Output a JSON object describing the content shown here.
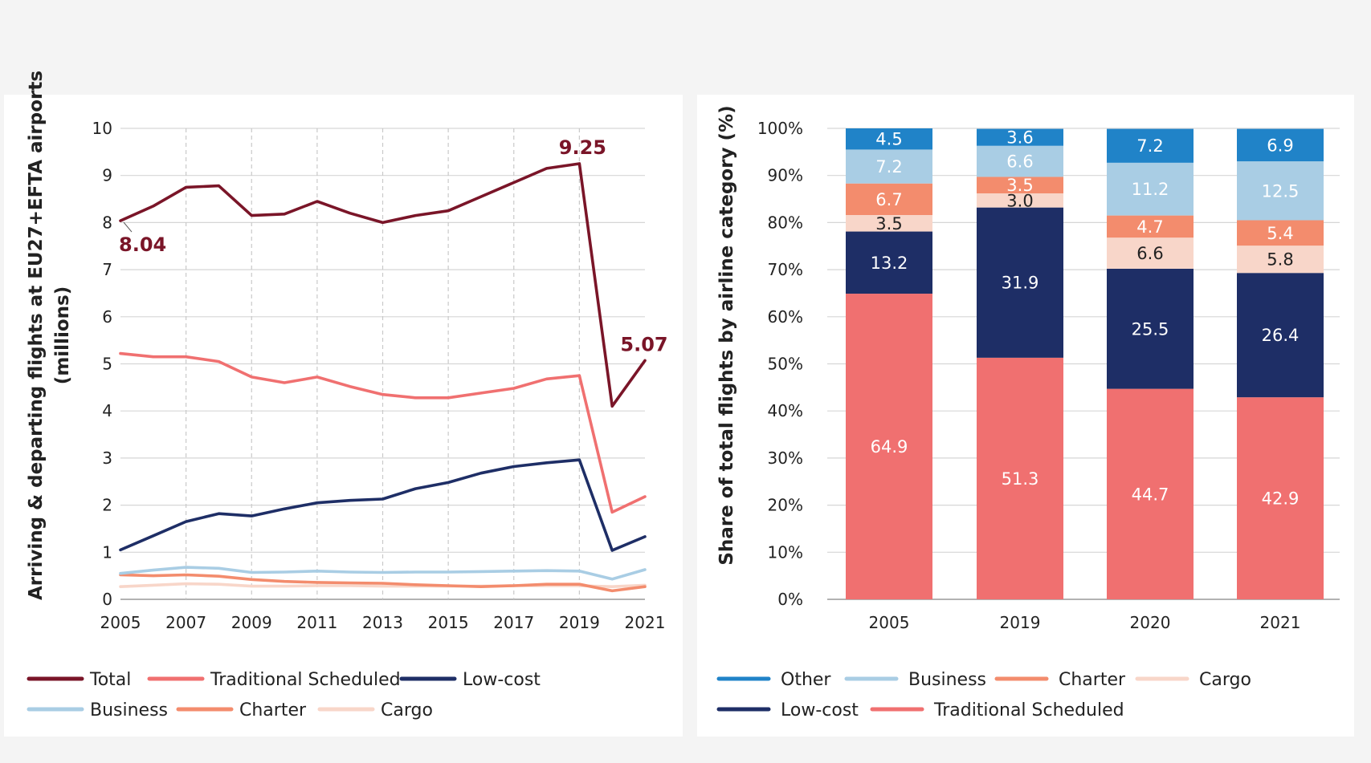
{
  "line_chart": {
    "ylabel_line1": "Arriving & departing flights at EU27+EFTA airports",
    "ylabel_line2": "(millions)",
    "annotations": [
      {
        "text": "8.04",
        "x": 2005,
        "y": 8.04
      },
      {
        "text": "9.25",
        "x": 2019,
        "y": 9.25
      },
      {
        "text": "5.07",
        "x": 2021,
        "y": 5.07
      }
    ],
    "legend": [
      "Total",
      "Traditional Scheduled",
      "Low-cost",
      "Business",
      "Charter",
      "Cargo"
    ]
  },
  "bar_chart": {
    "ylabel": "Share of total flights by airline category (%)",
    "legend": [
      "Other",
      "Business",
      "Charter",
      "Cargo",
      "Low-cost",
      "Traditional Scheduled"
    ]
  },
  "colors": {
    "total": "#7a1528",
    "traditional_scheduled": "#f07070",
    "low_cost": "#1e2e66",
    "business": "#a9cde4",
    "charter": "#f38c6d",
    "cargo": "#f8d6c9",
    "other": "#2083c8"
  },
  "chart_data": [
    {
      "type": "line",
      "x": [
        2005,
        2006,
        2007,
        2008,
        2009,
        2010,
        2011,
        2012,
        2013,
        2014,
        2015,
        2016,
        2017,
        2018,
        2019,
        2020,
        2021
      ],
      "xticks": [
        "2005",
        "2007",
        "2009",
        "2011",
        "2013",
        "2015",
        "2017",
        "2019",
        "2021"
      ],
      "yticks": [
        "0",
        "1",
        "2",
        "3",
        "4",
        "5",
        "6",
        "7",
        "8",
        "9",
        "10"
      ],
      "ylim": [
        0,
        10
      ],
      "xlim": [
        2005,
        2021
      ],
      "ylabel": "Arriving & departing flights at EU27+EFTA airports (millions)",
      "grid": {
        "horizontal": true,
        "vertical_dashed": true
      },
      "legend_position": "bottom",
      "series": [
        {
          "name": "Total",
          "color": "#7a1528",
          "values": [
            8.04,
            8.35,
            8.75,
            8.78,
            8.15,
            8.18,
            8.45,
            8.2,
            8.0,
            8.15,
            8.25,
            8.55,
            8.85,
            9.15,
            9.25,
            4.1,
            5.07
          ]
        },
        {
          "name": "Traditional Scheduled",
          "color": "#f07070",
          "values": [
            5.22,
            5.15,
            5.15,
            5.05,
            4.72,
            4.6,
            4.72,
            4.52,
            4.35,
            4.28,
            4.28,
            4.38,
            4.48,
            4.68,
            4.75,
            1.85,
            2.18
          ]
        },
        {
          "name": "Low-cost",
          "color": "#1e2e66",
          "values": [
            1.05,
            1.35,
            1.65,
            1.82,
            1.77,
            1.92,
            2.05,
            2.1,
            2.13,
            2.35,
            2.48,
            2.68,
            2.82,
            2.9,
            2.96,
            1.04,
            1.33
          ]
        },
        {
          "name": "Business",
          "color": "#a9cde4",
          "values": [
            0.55,
            0.62,
            0.68,
            0.66,
            0.57,
            0.58,
            0.6,
            0.58,
            0.57,
            0.58,
            0.58,
            0.59,
            0.6,
            0.61,
            0.6,
            0.43,
            0.63
          ]
        },
        {
          "name": "Charter",
          "color": "#f38c6d",
          "values": [
            0.52,
            0.5,
            0.52,
            0.49,
            0.42,
            0.38,
            0.36,
            0.35,
            0.34,
            0.31,
            0.29,
            0.27,
            0.29,
            0.32,
            0.32,
            0.18,
            0.27
          ]
        },
        {
          "name": "Cargo",
          "color": "#f8d6c9",
          "values": [
            0.27,
            0.3,
            0.33,
            0.32,
            0.28,
            0.28,
            0.29,
            0.29,
            0.28,
            0.28,
            0.28,
            0.28,
            0.29,
            0.29,
            0.29,
            0.27,
            0.3
          ]
        }
      ]
    },
    {
      "type": "bar",
      "stacked": true,
      "categories": [
        "2005",
        "2019",
        "2020",
        "2021"
      ],
      "ylim": [
        0,
        100
      ],
      "yticks": [
        "0%",
        "10%",
        "20%",
        "30%",
        "40%",
        "50%",
        "60%",
        "70%",
        "80%",
        "90%",
        "100%"
      ],
      "ylabel": "Share of total flights by airline category (%)",
      "legend_position": "bottom",
      "series": [
        {
          "name": "Traditional Scheduled",
          "color": "#f07070",
          "label_color": "#ffffff",
          "values": [
            64.9,
            51.3,
            44.7,
            42.9
          ]
        },
        {
          "name": "Low-cost",
          "color": "#1e2e66",
          "label_color": "#ffffff",
          "values": [
            13.2,
            31.9,
            25.5,
            26.4
          ]
        },
        {
          "name": "Cargo",
          "color": "#f8d6c9",
          "label_color": "#222222",
          "values": [
            3.5,
            3.0,
            6.6,
            5.8
          ]
        },
        {
          "name": "Charter",
          "color": "#f38c6d",
          "label_color": "#ffffff",
          "values": [
            6.7,
            3.5,
            4.7,
            5.4
          ]
        },
        {
          "name": "Business",
          "color": "#a9cde4",
          "label_color": "#ffffff",
          "values": [
            7.2,
            6.6,
            11.2,
            12.5
          ]
        },
        {
          "name": "Other",
          "color": "#2083c8",
          "label_color": "#ffffff",
          "values": [
            4.5,
            3.6,
            7.2,
            6.9
          ]
        }
      ]
    }
  ]
}
